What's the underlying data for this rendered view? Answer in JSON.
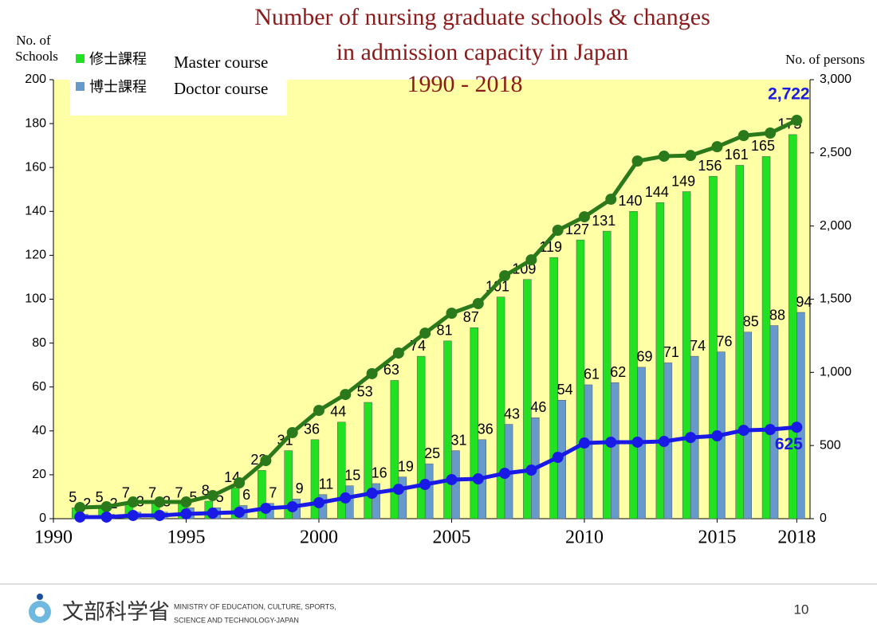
{
  "chart_data": {
    "type": "bar_line",
    "title": [
      "Number of nursing graduate schools & changes",
      "in admission capacity in Japan",
      "1990 - 2018"
    ],
    "y_label": [
      "No. of",
      "Schools"
    ],
    "y2_label": "No. of persons",
    "x": [
      1991,
      1992,
      1993,
      1994,
      1995,
      1996,
      1997,
      1998,
      1999,
      2000,
      2001,
      2002,
      2003,
      2004,
      2005,
      2006,
      2007,
      2008,
      2009,
      2010,
      2011,
      2012,
      2013,
      2014,
      2015,
      2016,
      2017,
      2018
    ],
    "series": [
      {
        "name": "修士課程",
        "english_name": "Master course",
        "kind": "bar",
        "color": "#22e022",
        "values": [
          5,
          5,
          7,
          7,
          7,
          8,
          14,
          22,
          31,
          36,
          44,
          53,
          63,
          74,
          81,
          87,
          101,
          109,
          119,
          127,
          131,
          140,
          144,
          149,
          156,
          161,
          165,
          175
        ]
      },
      {
        "name": "博士課程",
        "english_name": "Doctor course",
        "kind": "bar",
        "color": "#6699cc",
        "values": [
          2,
          2,
          3,
          3,
          5,
          5,
          6,
          7,
          9,
          11,
          15,
          16,
          19,
          25,
          31,
          36,
          43,
          46,
          54,
          61,
          62,
          69,
          71,
          74,
          76,
          85,
          88,
          94
        ]
      },
      {
        "kind": "line",
        "axis": "y2",
        "color": "#2a7a1c",
        "values": [
          76,
          82,
          114,
          114,
          114,
          158,
          245,
          397,
          588,
          740,
          849,
          991,
          1132,
          1268,
          1404,
          1470,
          1660,
          1769,
          1971,
          2063,
          2183,
          2444,
          2477,
          2482,
          2542,
          2618,
          2635,
          2722
        ],
        "value_labels": [
          null,
          null,
          null,
          null,
          null,
          null,
          null,
          null,
          null,
          null,
          null,
          null,
          null,
          null,
          null,
          null,
          null,
          null,
          null,
          null,
          null,
          null,
          null,
          null,
          null,
          null,
          null,
          "2,722"
        ]
      },
      {
        "kind": "line",
        "axis": "y2",
        "color": "#1a1ae6",
        "values": [
          11,
          11,
          22,
          22,
          33,
          38,
          44,
          71,
          82,
          109,
          142,
          174,
          201,
          234,
          267,
          272,
          310,
          332,
          419,
          517,
          523,
          523,
          528,
          555,
          566,
          604,
          609,
          625
        ],
        "value_labels": [
          null,
          null,
          null,
          null,
          null,
          null,
          null,
          null,
          null,
          null,
          null,
          null,
          null,
          null,
          null,
          null,
          null,
          null,
          null,
          null,
          null,
          null,
          null,
          null,
          null,
          null,
          null,
          "625"
        ]
      }
    ],
    "xlim": [
      1990,
      2018.5
    ],
    "xticks": [
      1990,
      1995,
      2000,
      2005,
      2010,
      2015,
      2018
    ],
    "ylim": [
      0,
      200
    ],
    "yticks": [
      0,
      20,
      40,
      60,
      80,
      100,
      120,
      140,
      160,
      180,
      200
    ],
    "y2lim": [
      0,
      3000
    ],
    "y2ticks": [
      0,
      500,
      {
        "value": 1000,
        "label": "1,000"
      },
      {
        "value": 1500,
        "label": "1,500"
      },
      {
        "value": 2000,
        "label": "2,000"
      },
      {
        "value": 2500,
        "label": "2,500"
      },
      {
        "value": 3000,
        "label": "3,000"
      }
    ],
    "background": "#ffffa6"
  },
  "footer": {
    "logo_text": "文部科学省",
    "ministry": [
      "MINISTRY OF EDUCATION, CULTURE, SPORTS,",
      "SCIENCE AND TECHNOLOGY-JAPAN"
    ],
    "page_number": "10"
  }
}
